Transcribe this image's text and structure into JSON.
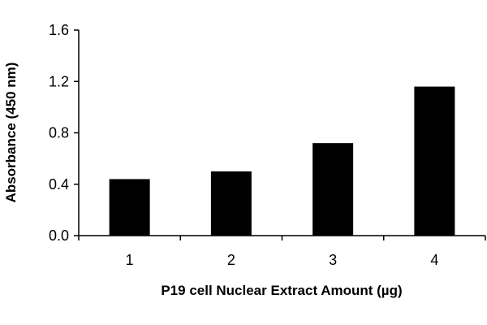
{
  "chart_data": {
    "type": "bar",
    "title": "",
    "xlabel": "P19 cell Nuclear Extract Amount (µg)",
    "ylabel": "Absorbance (450 nm)",
    "categories": [
      "1",
      "2",
      "3",
      "4"
    ],
    "values": [
      0.44,
      0.5,
      0.72,
      1.16
    ],
    "ylim": [
      0,
      1.6
    ],
    "yticks": [
      "0.0",
      "0.4",
      "0.8",
      "1.2",
      "1.6"
    ],
    "grid": false,
    "legend": "none",
    "bar_color": "#000000"
  }
}
